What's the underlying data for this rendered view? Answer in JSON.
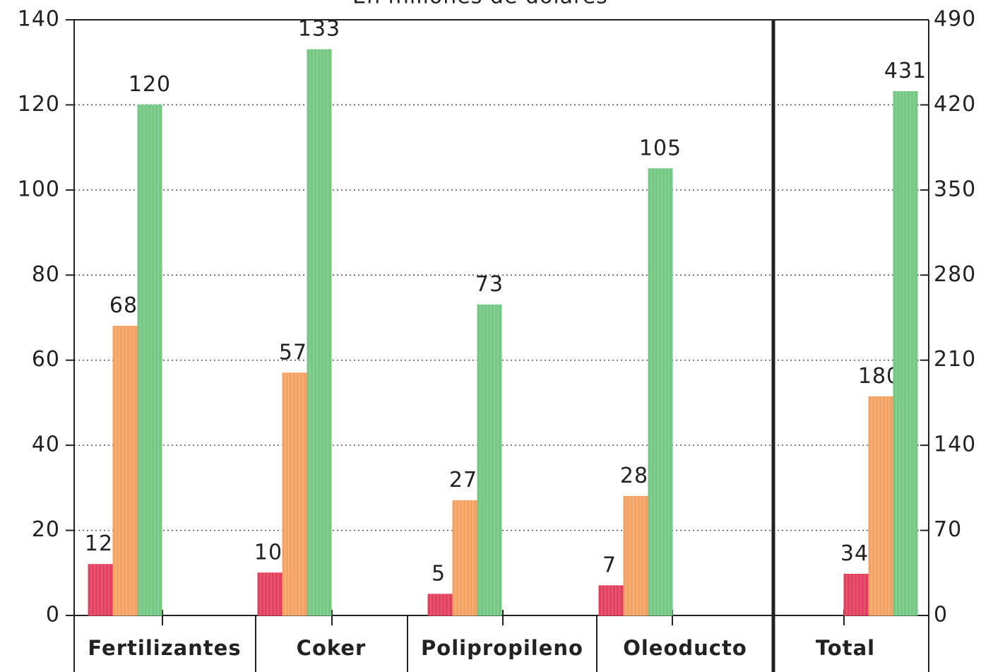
{
  "chart_data": [
    {
      "type": "bar",
      "subtitle": "En millones de dolares",
      "categories": [
        "Fertilizantes",
        "Coker",
        "Polipropileno",
        "Oleoducto"
      ],
      "series": [
        {
          "color": "#e2405e",
          "values": [
            12,
            10,
            5,
            7
          ]
        },
        {
          "color": "#f4a264",
          "values": [
            68,
            57,
            27,
            28
          ]
        },
        {
          "color": "#74c884",
          "values": [
            120,
            133,
            73,
            105
          ]
        }
      ],
      "ylim": [
        0,
        140
      ],
      "yticks": [
        0,
        20,
        40,
        60,
        80,
        100,
        120,
        140
      ],
      "grid": true
    },
    {
      "type": "bar",
      "categories": [
        "Total"
      ],
      "series": [
        {
          "color": "#e2405e",
          "axis": "y2",
          "values": [
            34
          ]
        },
        {
          "color": "#f4a264",
          "axis": "y2",
          "values": [
            180
          ]
        },
        {
          "color": "#74c884",
          "axis": "y2",
          "values": [
            431
          ]
        }
      ],
      "y2lim": [
        0,
        490
      ],
      "y2ticks": [
        0,
        70,
        140,
        210,
        280,
        350,
        420,
        490
      ]
    }
  ]
}
